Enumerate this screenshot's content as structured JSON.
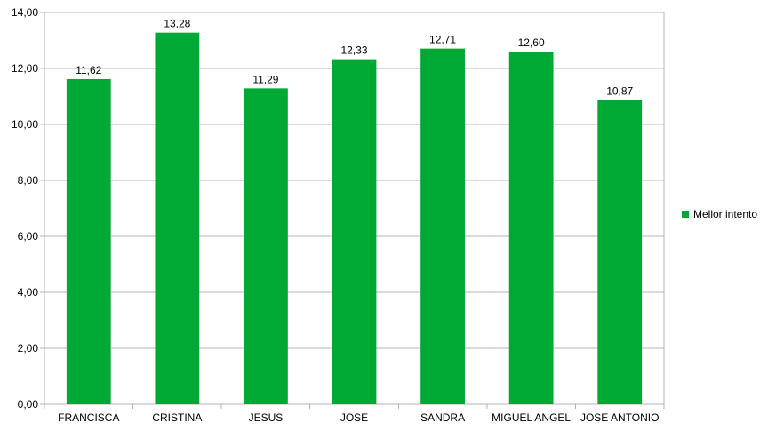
{
  "chart_data": {
    "type": "bar",
    "categories": [
      "FRANCISCA",
      "CRISTINA",
      "JESUS",
      "JOSE",
      "SANDRA",
      "MIGUEL ANGEL",
      "JOSE ANTONIO"
    ],
    "series": [
      {
        "name": "Mellor intento",
        "values": [
          11.62,
          13.28,
          11.29,
          12.33,
          12.71,
          12.6,
          10.87
        ],
        "color": "#00a933"
      }
    ],
    "data_labels": [
      "11,62",
      "13,28",
      "11,29",
      "12,33",
      "12,71",
      "12,60",
      "10,87"
    ],
    "y_ticks": [
      "0,00",
      "2,00",
      "4,00",
      "6,00",
      "8,00",
      "10,00",
      "12,00",
      "14,00"
    ],
    "ylim": [
      0,
      14
    ],
    "y_step": 2,
    "grid": true,
    "legend_position": "right"
  }
}
